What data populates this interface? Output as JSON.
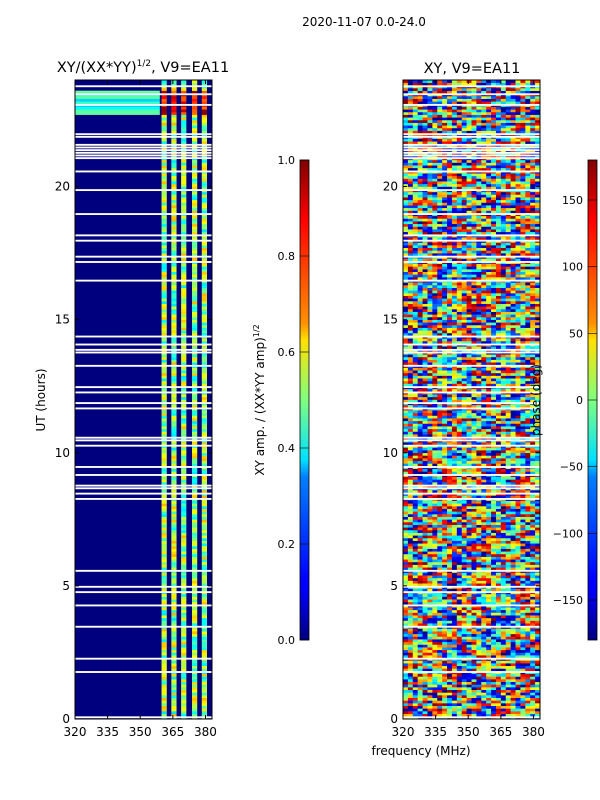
{
  "figure": {
    "suptitle": "2020-11-07 0.0-24.0",
    "shared_xlabel": "frequency (MHz)"
  },
  "chart_data": [
    {
      "type": "heatmap",
      "title_main": "XY/(XX*YY)",
      "title_sup": "1/2",
      "title_rest": ", V9=EA11",
      "xlabel": "",
      "ylabel": "UT (hours)",
      "xlim": [
        320,
        383
      ],
      "ylim": [
        0,
        24
      ],
      "xticks": [
        320,
        335,
        350,
        365,
        380
      ],
      "yticks": [
        0,
        5,
        10,
        15,
        20
      ],
      "colorbar": {
        "label_main": "XY amp. / (XX*YY amp)",
        "label_sup": "1/2",
        "range": [
          0,
          1
        ],
        "ticks": [
          "0.0",
          "0.2",
          "0.4",
          "0.6",
          "0.8",
          "1.0"
        ],
        "tick_values": [
          0,
          0.2,
          0.4,
          0.6,
          0.8,
          1.0
        ]
      },
      "bright_channels_mhz": [
        361,
        365.5,
        370,
        375,
        379.5
      ],
      "rfi_band_hours": [
        22.7,
        23.7
      ]
    },
    {
      "type": "heatmap",
      "title": "XY, V9=EA11",
      "xlabel": "frequency (MHz)",
      "ylabel": "",
      "xlim": [
        320,
        383
      ],
      "ylim": [
        0,
        24
      ],
      "xticks": [
        320,
        335,
        350,
        365,
        380
      ],
      "yticks": [
        0,
        5,
        10,
        15,
        20
      ],
      "colorbar": {
        "label": "phase (deg)",
        "range": [
          -180,
          180
        ],
        "ticks": [
          "−150",
          "−100",
          "−50",
          "0",
          "50",
          "100",
          "150"
        ],
        "tick_values": [
          -150,
          -100,
          -50,
          0,
          50,
          100,
          150
        ]
      }
    }
  ],
  "colors": {
    "dark_blue": "#00007f",
    "white": "#ffffff"
  }
}
